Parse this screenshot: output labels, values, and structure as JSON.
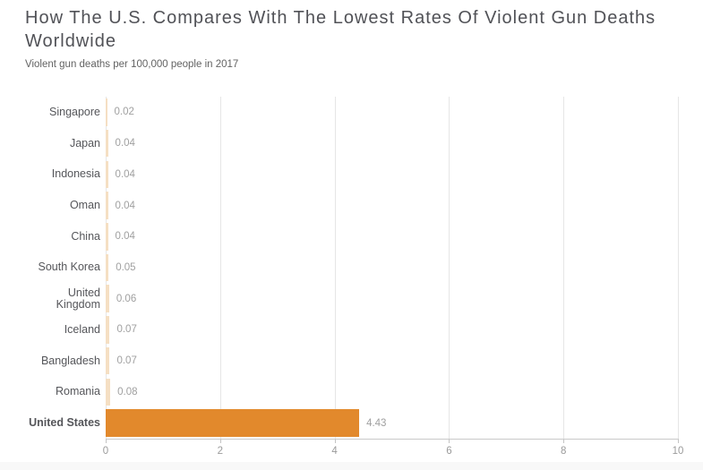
{
  "page": {
    "title": "How The U.S. Compares With The Lowest Rates Of Violent Gun Deaths Worldwide",
    "subtitle": "Violent gun deaths per 100,000 people in 2017"
  },
  "colors": {
    "bar_default": "#f5dfc3",
    "bar_highlight": "#e2892c",
    "title_text": "#515257",
    "subtitle_text": "#636363",
    "category_text": "#55565a",
    "value_text": "#a0a0a0",
    "gridline": "#e6e6e6",
    "axis_line": "#c9c9c9",
    "tick_text": "#9b9b9b"
  },
  "chart_data": {
    "type": "bar",
    "orientation": "horizontal",
    "title": "How The U.S. Compares With The Lowest Rates Of Violent Gun Deaths Worldwide",
    "subtitle": "Violent gun deaths per 100,000 people in 2017",
    "categories": [
      "Singapore",
      "Japan",
      "Indonesia",
      "Oman",
      "China",
      "South Korea",
      "United Kingdom",
      "Iceland",
      "Bangladesh",
      "Romania",
      "United States"
    ],
    "values": [
      0.02,
      0.04,
      0.04,
      0.04,
      0.04,
      0.05,
      0.06,
      0.07,
      0.07,
      0.08,
      4.43
    ],
    "value_labels": [
      "0.02",
      "0.04",
      "0.04",
      "0.04",
      "0.04",
      "0.05",
      "0.06",
      "0.07",
      "0.07",
      "0.08",
      "4.43"
    ],
    "highlight_category": "United States",
    "xlabel": "",
    "ylabel": "",
    "xlim": [
      0,
      10
    ],
    "x_ticks": [
      0,
      2,
      4,
      6,
      8,
      10
    ],
    "grid": true,
    "legend": false
  }
}
